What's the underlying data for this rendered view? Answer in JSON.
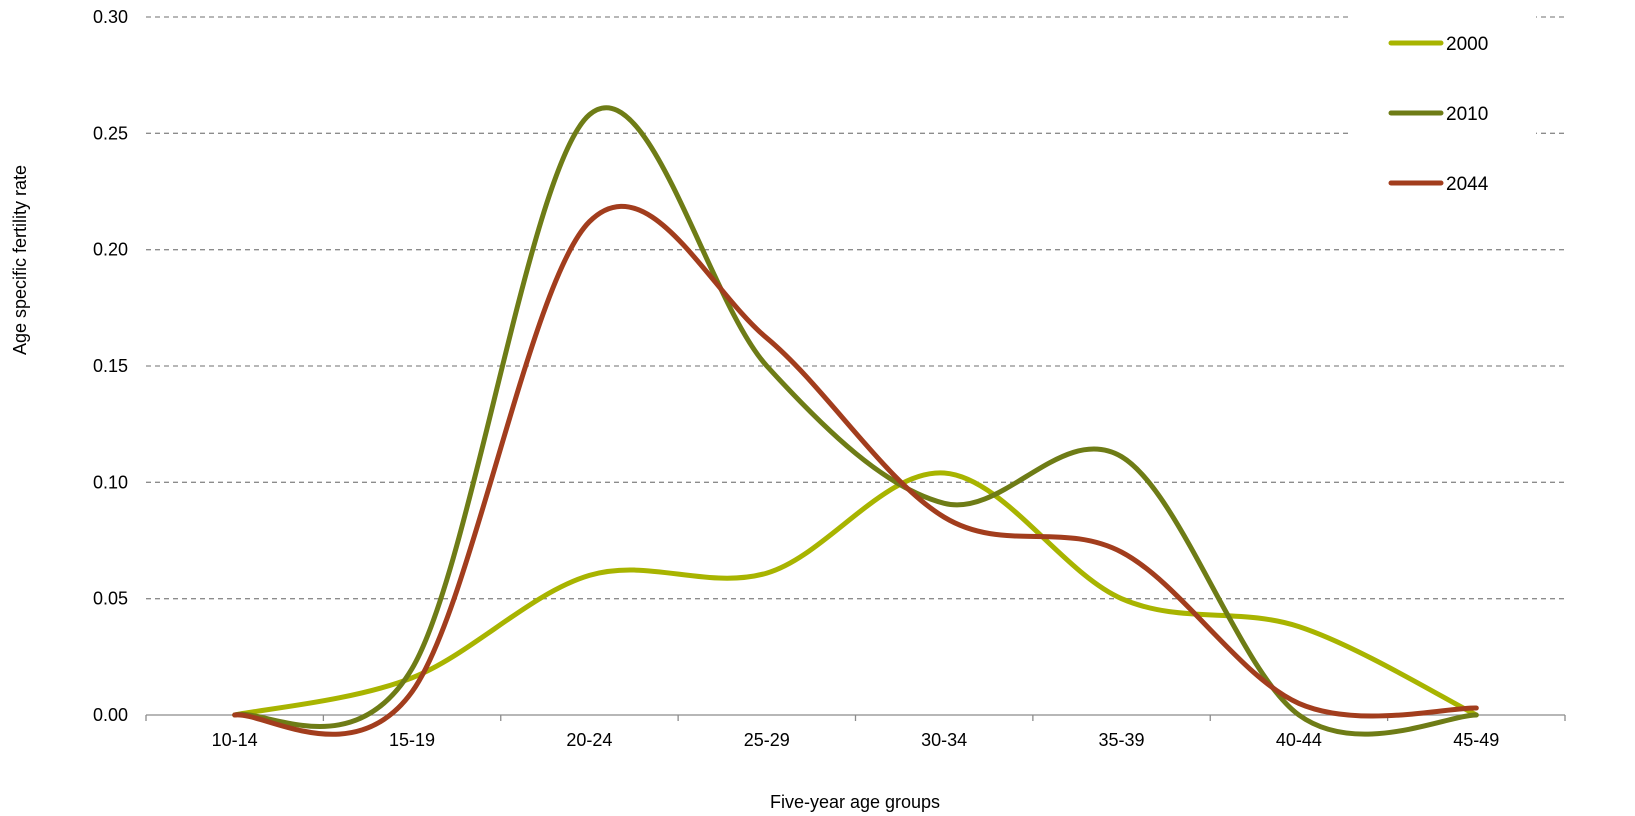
{
  "chart_data": {
    "type": "line",
    "smooth": true,
    "title": "",
    "xlabel": "Five-year age groups",
    "ylabel": "Age specific fertility rate",
    "categories": [
      "10-14",
      "15-19",
      "20-24",
      "25-29",
      "30-34",
      "35-39",
      "40-44",
      "45-49"
    ],
    "ylim": [
      0,
      0.3
    ],
    "yticks": [
      "0.00",
      "0.05",
      "0.10",
      "0.15",
      "0.20",
      "0.25",
      "0.30"
    ],
    "grid": "horizontal-dashed",
    "legend_position": "top-right",
    "series": [
      {
        "name": "2000",
        "color": "#a8b400",
        "values": [
          0.0,
          0.016,
          0.06,
          0.061,
          0.104,
          0.05,
          0.038,
          0.0
        ]
      },
      {
        "name": "2010",
        "color": "#6e7c16",
        "values": [
          0.0,
          0.02,
          0.258,
          0.15,
          0.091,
          0.111,
          0.0,
          0.0
        ]
      },
      {
        "name": "2044",
        "color": "#a23d1d",
        "values": [
          0.0,
          0.01,
          0.212,
          0.162,
          0.085,
          0.07,
          0.005,
          0.003
        ]
      }
    ]
  }
}
